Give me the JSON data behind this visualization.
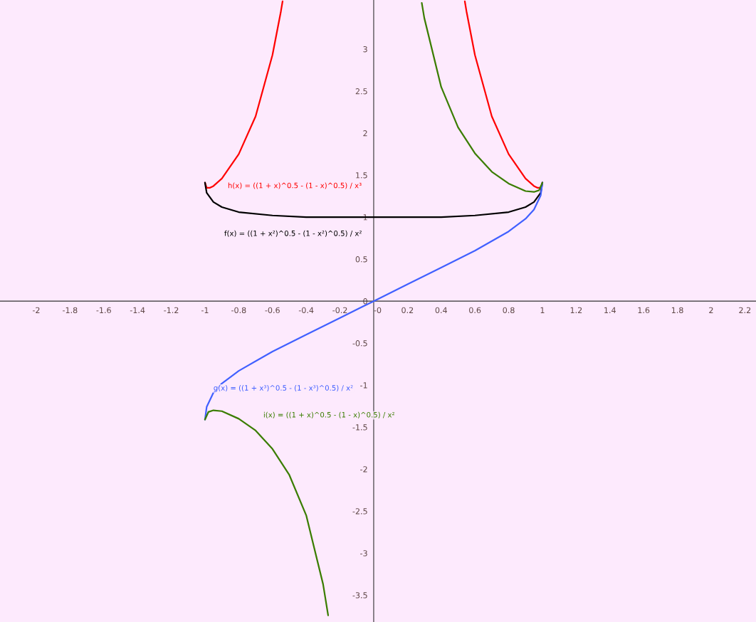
{
  "chart_data": {
    "type": "line",
    "xlim": [
      -2.215,
      2.266
    ],
    "ylim": [
      -3.82,
      3.585
    ],
    "xticks": [
      -2,
      -1.8,
      -1.6,
      -1.4,
      -1.2,
      -1,
      -0.8,
      -0.6,
      -0.4,
      -0.2,
      {
        "value": 0,
        "label": "-0"
      },
      0.2,
      0.4,
      0.6,
      0.8,
      1,
      1.2,
      1.4,
      1.6,
      1.8,
      2,
      2.2
    ],
    "yticks": [
      -3.5,
      -3,
      -2.5,
      -2,
      -1.5,
      -1,
      -0.5,
      0,
      0.5,
      1,
      1.5,
      2,
      2.5,
      3
    ],
    "grid": false,
    "legend": false,
    "series": [
      {
        "name": "h(x) = ((1 + x)^0.5 - (1 - x)^0.5) / x³",
        "color": "#ff0000",
        "x": [
          -1,
          -0.99,
          -0.97,
          -0.95,
          -0.9,
          -0.8,
          -0.7,
          -0.6,
          -0.55,
          -0.54,
          0,
          0.54,
          0.55,
          0.6,
          0.7,
          0.8,
          0.9,
          0.95,
          0.97,
          0.99,
          1
        ],
        "values": [
          1.41,
          1.35,
          1.35,
          1.37,
          1.46,
          1.75,
          2.2,
          2.93,
          3.45,
          3.57,
          null,
          3.57,
          3.45,
          2.93,
          2.2,
          1.75,
          1.46,
          1.37,
          1.35,
          1.35,
          1.41
        ]
      },
      {
        "name": "f(x) = ((1 + x²)^0.5 - (1 - x²)^0.5) / x²",
        "color": "#000000",
        "x": [
          -1,
          -0.99,
          -0.95,
          -0.9,
          -0.8,
          -0.6,
          -0.4,
          -0.2,
          0,
          0.2,
          0.4,
          0.6,
          0.8,
          0.9,
          0.95,
          0.99,
          1
        ],
        "values": [
          1.41,
          1.29,
          1.18,
          1.12,
          1.06,
          1.02,
          1.0,
          1.0,
          1.0,
          1.0,
          1.0,
          1.02,
          1.06,
          1.12,
          1.18,
          1.29,
          1.41
        ]
      },
      {
        "name": "g(x) = ((1 + x³)^0.5 - (1 - x³)^0.5) / x²",
        "color": "#4060ff",
        "x": [
          -1,
          -0.99,
          -0.95,
          -0.9,
          -0.8,
          -0.6,
          -0.4,
          -0.2,
          0,
          0.2,
          0.4,
          0.6,
          0.8,
          0.9,
          0.95,
          0.99,
          1
        ],
        "values": [
          -1.41,
          -1.26,
          -1.09,
          -0.98,
          -0.83,
          -0.6,
          -0.4,
          -0.2,
          0,
          0.2,
          0.4,
          0.6,
          0.83,
          0.98,
          1.09,
          1.26,
          1.41
        ]
      },
      {
        "name": "i(x) = ((1 + x)^0.5 - (1 - x)^0.5) / x²",
        "color": "#3a7d00",
        "x": [
          -1,
          -0.98,
          -0.95,
          -0.9,
          -0.8,
          -0.7,
          -0.6,
          -0.5,
          -0.4,
          -0.3,
          -0.27,
          0,
          0.285,
          0.3,
          0.4,
          0.5,
          0.6,
          0.7,
          0.8,
          0.9,
          0.95,
          0.98,
          1
        ],
        "values": [
          -1.41,
          -1.32,
          -1.3,
          -1.31,
          -1.4,
          -1.54,
          -1.76,
          -2.07,
          -2.55,
          -3.37,
          -3.74,
          null,
          3.55,
          3.37,
          2.55,
          2.07,
          1.76,
          1.54,
          1.4,
          1.31,
          1.3,
          1.32,
          1.41
        ]
      }
    ]
  }
}
